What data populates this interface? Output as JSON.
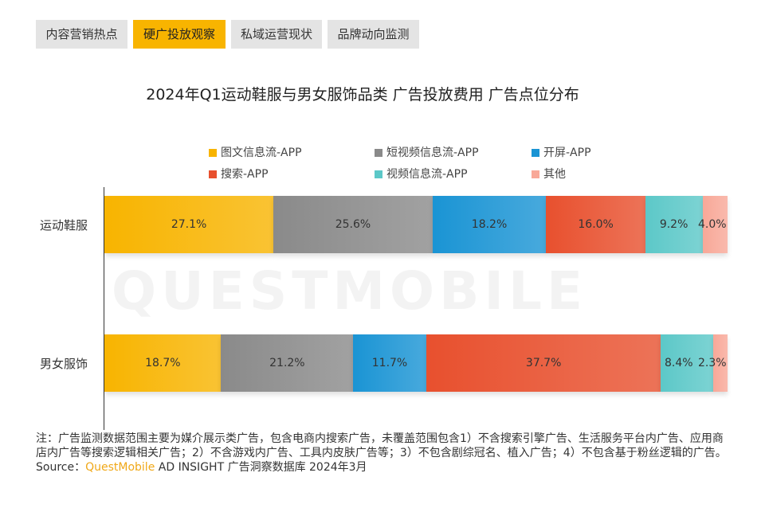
{
  "tabs": [
    {
      "label": "内容营销热点",
      "active": false
    },
    {
      "label": "硬广投放观察",
      "active": true
    },
    {
      "label": "私域运营现状",
      "active": false
    },
    {
      "label": "品牌动向监测",
      "active": false
    }
  ],
  "watermark": "QUESTMOBILE",
  "chart_data": {
    "type": "bar",
    "orientation": "horizontal-stacked-100",
    "title": "2024年Q1运动鞋服与男女服饰品类 广告投放费用 广告点位分布",
    "categories": [
      "运动鞋服",
      "男女服饰"
    ],
    "legend_position": "top",
    "series": [
      {
        "name": "图文信息流-APP",
        "color": "#f8b400",
        "values": [
          27.1,
          18.7
        ]
      },
      {
        "name": "短视频信息流-APP",
        "color": "#8a8a8a",
        "values": [
          25.6,
          21.2
        ]
      },
      {
        "name": "开屏-APP",
        "color": "#1a94d4",
        "values": [
          18.2,
          11.7
        ]
      },
      {
        "name": "搜索-APP",
        "color": "#e8502e",
        "values": [
          16.0,
          37.7
        ]
      },
      {
        "name": "视频信息流-APP",
        "color": "#5cc8c8",
        "values": [
          9.2,
          8.4
        ]
      },
      {
        "name": "其他",
        "color": "#f8a898",
        "values": [
          4.0,
          2.3
        ]
      }
    ],
    "value_labels": [
      [
        "27.1%",
        "25.6%",
        "18.2%",
        "16.0%",
        "9.2%",
        "4.0%"
      ],
      [
        "18.7%",
        "21.2%",
        "11.7%",
        "37.7%",
        "8.4%",
        "2.3%"
      ]
    ]
  },
  "note": "注：广告监测数据范围主要为媒介展示类广告，包含电商内搜索广告，未覆盖范围包含1）不含搜索引擎广告、生活服务平台内广告、应用商店内广告等搜索逻辑相关广告；2）不含游戏内广告、工具内皮肤广告等；3）不包含剧综冠名、植入广告；4）不包含基于粉丝逻辑的广告。",
  "source": {
    "prefix": "Source：",
    "brand": "QuestMobile",
    "suffix": "AD INSIGHT 广告洞察数据库 2024年3月"
  }
}
